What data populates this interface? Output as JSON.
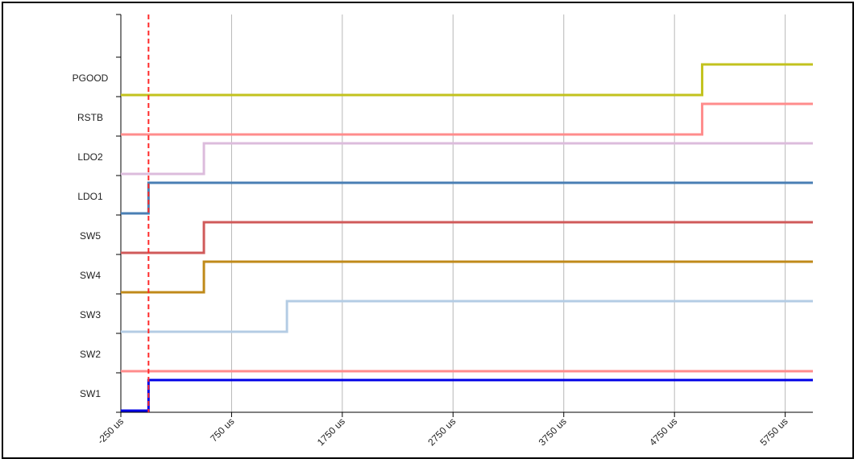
{
  "chart_data": {
    "type": "line",
    "subtype": "digital-timing-diagram",
    "title": "",
    "xlabel": "",
    "ylabel": "",
    "x_unit": "us",
    "xlim": [
      -250,
      6000
    ],
    "x_ticks": [
      -250,
      750,
      1750,
      2750,
      3750,
      4750,
      5750
    ],
    "x_tick_labels": [
      "-250 us",
      "750 us",
      "1750 us",
      "2750 us",
      "3750 us",
      "4750 us",
      "5750 us"
    ],
    "grid": {
      "vertical": true,
      "horizontal": false
    },
    "marker_line": {
      "x": 0,
      "color": "#ff2a2a",
      "style": "dashed"
    },
    "series": [
      {
        "name": "PGOOD",
        "color": "#c2c21e",
        "transitions": [
          [
            -250,
            0
          ],
          [
            5000,
            1
          ]
        ]
      },
      {
        "name": "RSTB",
        "color": "#ff8c8c",
        "transitions": [
          [
            -250,
            0
          ],
          [
            5000,
            1
          ]
        ]
      },
      {
        "name": "LDO2",
        "color": "#dcbcdc",
        "transitions": [
          [
            -250,
            0
          ],
          [
            500,
            1
          ]
        ]
      },
      {
        "name": "LDO1",
        "color": "#4a7fb4",
        "transitions": [
          [
            -250,
            0
          ],
          [
            0,
            1
          ]
        ]
      },
      {
        "name": "SW5",
        "color": "#d05a5a",
        "transitions": [
          [
            -250,
            0
          ],
          [
            500,
            1
          ]
        ]
      },
      {
        "name": "SW4",
        "color": "#c08a1a",
        "transitions": [
          [
            -250,
            0
          ],
          [
            500,
            1
          ]
        ]
      },
      {
        "name": "SW3",
        "color": "#b4cce4",
        "transitions": [
          [
            -250,
            0
          ],
          [
            1250,
            1
          ]
        ]
      },
      {
        "name": "SW2",
        "color": "#ff8c8c",
        "transitions": [
          [
            -250,
            0
          ]
        ]
      },
      {
        "name": "SW1",
        "color": "#0000e6",
        "transitions": [
          [
            -250,
            0
          ],
          [
            0,
            1
          ]
        ]
      }
    ]
  }
}
